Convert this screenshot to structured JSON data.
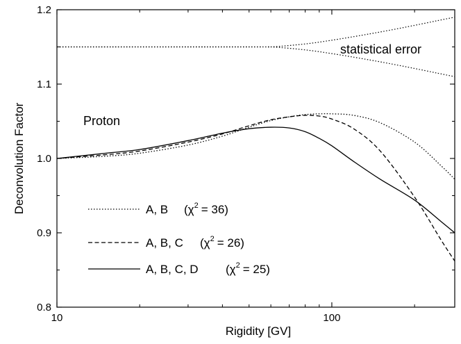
{
  "chart_data": {
    "type": "line",
    "xlabel": "Rigidity [GV]",
    "ylabel": "Deconvolution Factor",
    "xscale": "log",
    "xlim": [
      10,
      280
    ],
    "ylim": [
      0.8,
      1.2
    ],
    "xticks": [
      10,
      100
    ],
    "xtick_labels": [
      "10",
      "100"
    ],
    "yticks": [
      0.8,
      0.9,
      1.0,
      1.1,
      1.2
    ],
    "ytick_labels": [
      "0.8",
      "0.9",
      "1.0",
      "1.1",
      "1.2"
    ],
    "annotations": {
      "particle": "Proton",
      "statistical_error": "statistical error"
    },
    "legend_position": "lower-left",
    "series": [
      {
        "name": "A, B",
        "chi2_label": "(χ",
        "chi2_exp": "2",
        "chi2_value": "= 36)",
        "style": "dotted",
        "x": [
          10,
          15,
          20,
          30,
          40,
          50,
          60,
          70,
          80,
          90,
          100,
          120,
          150,
          200,
          250,
          280
        ],
        "y": [
          1.0,
          1.003,
          1.007,
          1.018,
          1.03,
          1.042,
          1.051,
          1.056,
          1.059,
          1.06,
          1.06,
          1.058,
          1.048,
          1.022,
          0.99,
          0.972
        ]
      },
      {
        "name": "A, B, C",
        "chi2_label": "(χ",
        "chi2_exp": "2",
        "chi2_value": "= 26)",
        "style": "dashed",
        "x": [
          10,
          15,
          20,
          30,
          40,
          50,
          60,
          70,
          80,
          90,
          100,
          120,
          150,
          200,
          250,
          280
        ],
        "y": [
          1.0,
          1.005,
          1.01,
          1.022,
          1.033,
          1.044,
          1.052,
          1.056,
          1.058,
          1.057,
          1.053,
          1.04,
          1.01,
          0.948,
          0.89,
          0.862
        ]
      },
      {
        "name": "A, B, C, D",
        "chi2_label": "(χ",
        "chi2_exp": "2",
        "chi2_value": "= 25)",
        "style": "solid",
        "x": [
          10,
          15,
          20,
          30,
          40,
          50,
          60,
          70,
          80,
          90,
          100,
          120,
          150,
          200,
          250,
          280
        ],
        "y": [
          1.0,
          1.007,
          1.012,
          1.024,
          1.034,
          1.04,
          1.042,
          1.041,
          1.036,
          1.027,
          1.017,
          0.996,
          0.972,
          0.944,
          0.915,
          0.9
        ]
      }
    ],
    "error_band": {
      "center": 1.15,
      "x": [
        10,
        50,
        60,
        80,
        100,
        130,
        160,
        200,
        240,
        280
      ],
      "upper": [
        1.15,
        1.15,
        1.15,
        1.154,
        1.159,
        1.166,
        1.172,
        1.179,
        1.185,
        1.19
      ],
      "lower": [
        1.15,
        1.15,
        1.15,
        1.146,
        1.141,
        1.134,
        1.128,
        1.121,
        1.115,
        1.11
      ]
    }
  }
}
